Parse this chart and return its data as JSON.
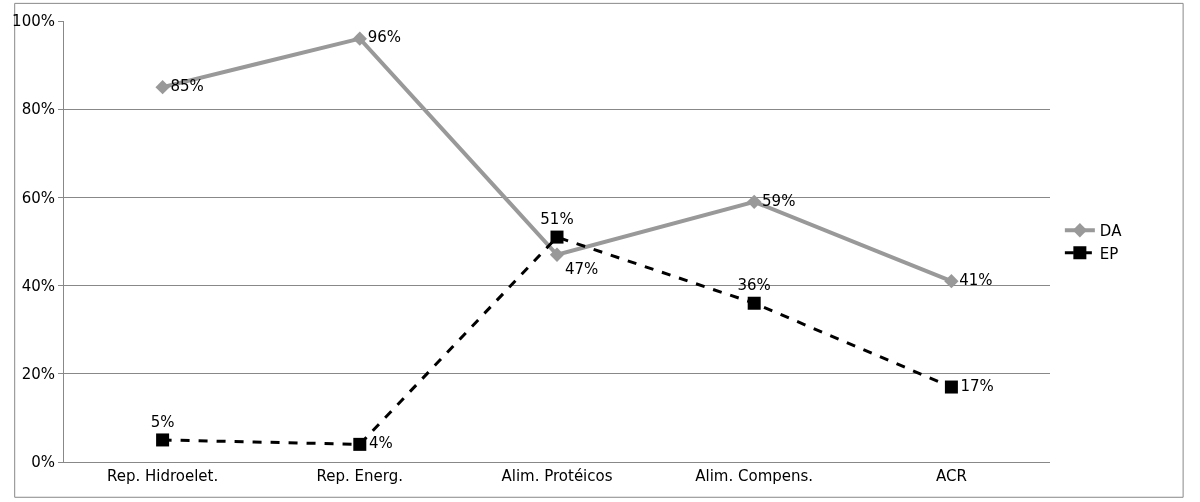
{
  "chart_data": {
    "type": "line",
    "categories": [
      "Rep. Hidroelet.",
      "Rep. Energ.",
      "Alim. Protéicos",
      "Alim. Compens.",
      "ACR"
    ],
    "series": [
      {
        "name": "DA",
        "color": "#999999",
        "marker": "diamond",
        "line_style": "solid",
        "values": [
          85,
          96,
          47,
          59,
          41
        ],
        "value_labels": [
          "85%",
          "96%",
          "47%",
          "59%",
          "41%"
        ]
      },
      {
        "name": "EP",
        "color": "#000000",
        "marker": "square",
        "line_style": "dashed",
        "values": [
          5,
          4,
          51,
          36,
          17
        ],
        "value_labels": [
          "5%",
          "4%",
          "51%",
          "36%",
          "17%"
        ]
      }
    ],
    "ylim": [
      0,
      100
    ],
    "yticks": [
      {
        "value": 0,
        "label": "0%"
      },
      {
        "value": 20,
        "label": "20%"
      },
      {
        "value": 40,
        "label": "40%"
      },
      {
        "value": 60,
        "label": "60%"
      },
      {
        "value": 80,
        "label": "80%"
      },
      {
        "value": 100,
        "label": "100%"
      }
    ],
    "grid": "y",
    "legend": "right"
  }
}
